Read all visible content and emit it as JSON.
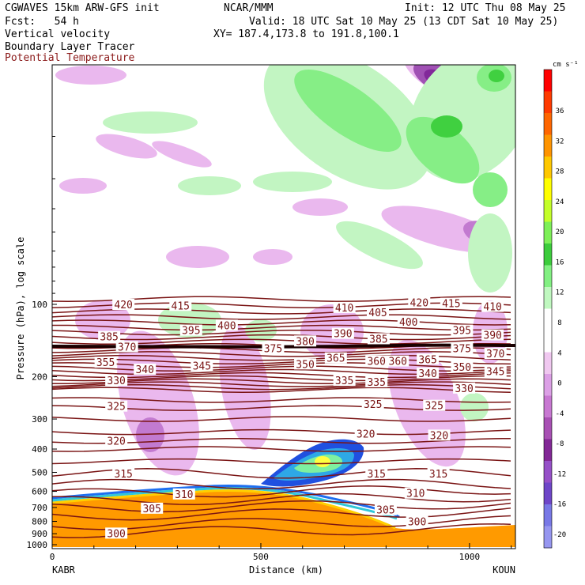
{
  "header": {
    "model": "CGWAVES 15km ARW-GFS init",
    "fcst": "Fcst:   54 h",
    "org": "NCAR/MMM",
    "init": "Init: 12 UTC Thu 08 May 25",
    "valid": "Valid: 18 UTC Sat 10 May 25 (13 CDT Sat 10 May 25)",
    "xy": "XY= 187.4,173.8 to 191.8,100.1",
    "field1": "Vertical velocity",
    "field2": "Boundary Layer Tracer",
    "field3": "Potential Temperature"
  },
  "chart_data": {
    "type": "heatmap",
    "title": "Vertical velocity",
    "xlabel": "Distance (km)",
    "ylabel": "Pressure (hPa), log scale",
    "x_ticks": [
      0,
      500,
      1000
    ],
    "x_range": [
      0,
      1110
    ],
    "y_ticks": [
      100,
      200,
      300,
      400,
      500,
      600,
      700,
      800,
      900,
      1000
    ],
    "y_range": [
      1000,
      10
    ],
    "y_scale": "log",
    "endpoints": [
      "KABR",
      "KOUN"
    ],
    "colorbar": {
      "units": "cm s⁻¹",
      "ticks": [
        36,
        32,
        28,
        24,
        20,
        16,
        12,
        8,
        4,
        0,
        -4,
        -8,
        -12,
        -16,
        -20
      ],
      "colors": [
        "#ff0000",
        "#ff3a00",
        "#ff6600",
        "#ff9400",
        "#ffc800",
        "#ffff00",
        "#c4ff2a",
        "#7ef058",
        "#3ccc3c",
        "#82f082",
        "#c0f8c0",
        "#ffffff",
        "#ffffff",
        "#f0c8f0",
        "#dca0e6",
        "#c878d2",
        "#a850b4",
        "#822896",
        "#9650c8",
        "#6e46c8",
        "#7878e6",
        "#9696f0"
      ]
    },
    "theta_contours": {
      "units": "K",
      "labels": [
        {
          "v": "420",
          "x": 100,
          "p": 100
        },
        {
          "v": "415",
          "x": 180,
          "p": 101
        },
        {
          "v": "400",
          "x": 245,
          "p": 122
        },
        {
          "v": "395",
          "x": 195,
          "p": 128
        },
        {
          "v": "385",
          "x": 80,
          "p": 136
        },
        {
          "v": "370",
          "x": 105,
          "p": 150
        },
        {
          "v": "355",
          "x": 75,
          "p": 174
        },
        {
          "v": "340",
          "x": 130,
          "p": 186
        },
        {
          "v": "345",
          "x": 210,
          "p": 180
        },
        {
          "v": "330",
          "x": 90,
          "p": 207
        },
        {
          "v": "325",
          "x": 90,
          "p": 265
        },
        {
          "v": "320",
          "x": 90,
          "p": 370
        },
        {
          "v": "315",
          "x": 100,
          "p": 505
        },
        {
          "v": "310",
          "x": 185,
          "p": 615
        },
        {
          "v": "305",
          "x": 140,
          "p": 705
        },
        {
          "v": "300",
          "x": 90,
          "p": 895
        },
        {
          "v": "410",
          "x": 410,
          "p": 103
        },
        {
          "v": "405",
          "x": 457,
          "p": 108
        },
        {
          "v": "390",
          "x": 408,
          "p": 132
        },
        {
          "v": "385",
          "x": 458,
          "p": 139
        },
        {
          "v": "380",
          "x": 355,
          "p": 142
        },
        {
          "v": "375",
          "x": 310,
          "p": 152
        },
        {
          "v": "365",
          "x": 398,
          "p": 167
        },
        {
          "v": "360",
          "x": 455,
          "p": 172
        },
        {
          "v": "360",
          "x": 485,
          "p": 172
        },
        {
          "v": "350",
          "x": 355,
          "p": 177
        },
        {
          "v": "335",
          "x": 410,
          "p": 207
        },
        {
          "v": "335",
          "x": 455,
          "p": 210
        },
        {
          "v": "325",
          "x": 450,
          "p": 260
        },
        {
          "v": "320",
          "x": 440,
          "p": 345
        },
        {
          "v": "315",
          "x": 455,
          "p": 505
        },
        {
          "v": "420",
          "x": 515,
          "p": 98
        },
        {
          "v": "415",
          "x": 560,
          "p": 99
        },
        {
          "v": "410",
          "x": 618,
          "p": 102
        },
        {
          "v": "400",
          "x": 500,
          "p": 118
        },
        {
          "v": "395",
          "x": 575,
          "p": 128
        },
        {
          "v": "390",
          "x": 618,
          "p": 134
        },
        {
          "v": "375",
          "x": 575,
          "p": 152
        },
        {
          "v": "370",
          "x": 622,
          "p": 160
        },
        {
          "v": "365",
          "x": 527,
          "p": 169
        },
        {
          "v": "350",
          "x": 575,
          "p": 182
        },
        {
          "v": "345",
          "x": 622,
          "p": 190
        },
        {
          "v": "340",
          "x": 527,
          "p": 193
        },
        {
          "v": "330",
          "x": 578,
          "p": 223
        },
        {
          "v": "325",
          "x": 536,
          "p": 263
        },
        {
          "v": "320",
          "x": 543,
          "p": 350
        },
        {
          "v": "315",
          "x": 542,
          "p": 505
        },
        {
          "v": "310",
          "x": 510,
          "p": 610
        },
        {
          "v": "305",
          "x": 468,
          "p": 715
        },
        {
          "v": "300",
          "x": 512,
          "p": 800
        }
      ]
    },
    "legend": "none"
  }
}
